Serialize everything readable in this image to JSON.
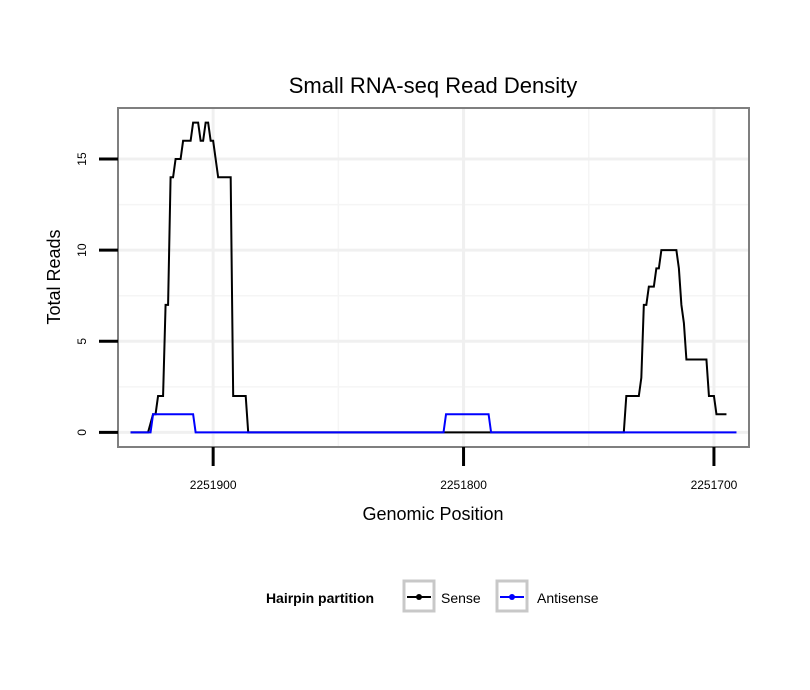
{
  "chart_data": {
    "type": "line",
    "title": "Small RNA-seq Read Density",
    "xlabel": "Genomic Position",
    "ylabel": "Total Reads",
    "x_reversed": true,
    "xlim": [
      2251938,
      2251686
    ],
    "ylim": [
      -0.8,
      17.8
    ],
    "x_ticks": [
      2251900,
      2251800,
      2251700
    ],
    "x_tick_labels": [
      "2251900",
      "2251800",
      "2251700"
    ],
    "y_ticks": [
      0,
      5,
      10,
      15
    ],
    "y_tick_labels": [
      "0",
      "5",
      "10",
      "15"
    ],
    "grid": true,
    "legend": {
      "title": "Hairpin partition",
      "position": "bottom",
      "entries": [
        {
          "name": "Sense",
          "color": "#000000"
        },
        {
          "name": "Antisense",
          "color": "#0000ff"
        }
      ]
    },
    "series": [
      {
        "name": "Sense",
        "color": "#000000",
        "points": [
          [
            2251933,
            0
          ],
          [
            2251926,
            0
          ],
          [
            2251924,
            1
          ],
          [
            2251923,
            1
          ],
          [
            2251922,
            2
          ],
          [
            2251920,
            2
          ],
          [
            2251919,
            7
          ],
          [
            2251918,
            7
          ],
          [
            2251917,
            14
          ],
          [
            2251916,
            14
          ],
          [
            2251915,
            15
          ],
          [
            2251913,
            15
          ],
          [
            2251912,
            16
          ],
          [
            2251909,
            16
          ],
          [
            2251908,
            17
          ],
          [
            2251906,
            17
          ],
          [
            2251905,
            16
          ],
          [
            2251904,
            16
          ],
          [
            2251903,
            17
          ],
          [
            2251902,
            17
          ],
          [
            2251901,
            16
          ],
          [
            2251900,
            16
          ],
          [
            2251899,
            15
          ],
          [
            2251898,
            14
          ],
          [
            2251893,
            14
          ],
          [
            2251892,
            2
          ],
          [
            2251887,
            2
          ],
          [
            2251886,
            0
          ],
          [
            2251736,
            0
          ],
          [
            2251735,
            2
          ],
          [
            2251730,
            2
          ],
          [
            2251729,
            3
          ],
          [
            2251728,
            7
          ],
          [
            2251727,
            7
          ],
          [
            2251726,
            8
          ],
          [
            2251724,
            8
          ],
          [
            2251723,
            9
          ],
          [
            2251722,
            9
          ],
          [
            2251721,
            10
          ],
          [
            2251715,
            10
          ],
          [
            2251714,
            9
          ],
          [
            2251713,
            7
          ],
          [
            2251712,
            6
          ],
          [
            2251711,
            4
          ],
          [
            2251703,
            4
          ],
          [
            2251702,
            2
          ],
          [
            2251700,
            2
          ],
          [
            2251699,
            1
          ],
          [
            2251695,
            1
          ]
        ]
      },
      {
        "name": "Antisense",
        "color": "#0000ff",
        "points": [
          [
            2251933,
            0
          ],
          [
            2251925,
            0
          ],
          [
            2251924,
            1
          ],
          [
            2251908,
            1
          ],
          [
            2251907,
            0
          ],
          [
            2251808,
            0
          ],
          [
            2251807,
            1
          ],
          [
            2251790,
            1
          ],
          [
            2251789,
            0
          ],
          [
            2251691,
            0
          ]
        ]
      }
    ]
  }
}
